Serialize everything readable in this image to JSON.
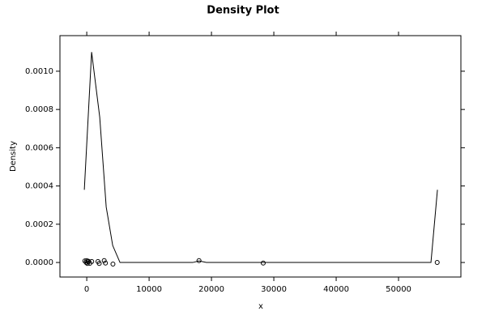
{
  "chart_data": {
    "type": "density",
    "title": "Density Plot",
    "x_label": "x",
    "y_label": "Density",
    "xlim": [
      -4300,
      60000
    ],
    "ylim": [
      -7.6e-05,
      0.001186
    ],
    "xticks": [
      0,
      10000,
      20000,
      30000,
      40000,
      50000
    ],
    "yticks": [
      {
        "value": 0,
        "label": "0.0000"
      },
      {
        "value": 0.0002,
        "label": "0.0002"
      },
      {
        "value": 0.0004,
        "label": "0.0004"
      },
      {
        "value": 0.0006,
        "label": "0.0006"
      },
      {
        "value": 0.0008,
        "label": "0.0008"
      },
      {
        "value": 0.001,
        "label": "0.0010"
      }
    ],
    "series": [
      {
        "color": "#000000",
        "x": [
          -390,
          780,
          2080,
          3120,
          4160,
          5330,
          17000,
          18000,
          19200,
          55200,
          56240
        ],
        "values": [
          0.00038,
          0.0011,
          0.00076,
          0.00029,
          8.9e-05,
          0,
          0,
          8e-06,
          0,
          0,
          0.00038
        ]
      },
      {
        "color": "#000000",
        "x": [
          -300,
          -100,
          0,
          100,
          200,
          300,
          500,
          800,
          1800,
          2000,
          2800,
          3000,
          4200,
          18000,
          28300,
          56200
        ],
        "values": [
          8e-06,
          0,
          1e-05,
          -5e-06,
          4e-06,
          6e-06,
          -4e-06,
          5e-06,
          5e-06,
          -5e-06,
          1e-05,
          -3e-06,
          -8e-06,
          1e-05,
          -3e-06,
          0
        ]
      }
    ]
  }
}
